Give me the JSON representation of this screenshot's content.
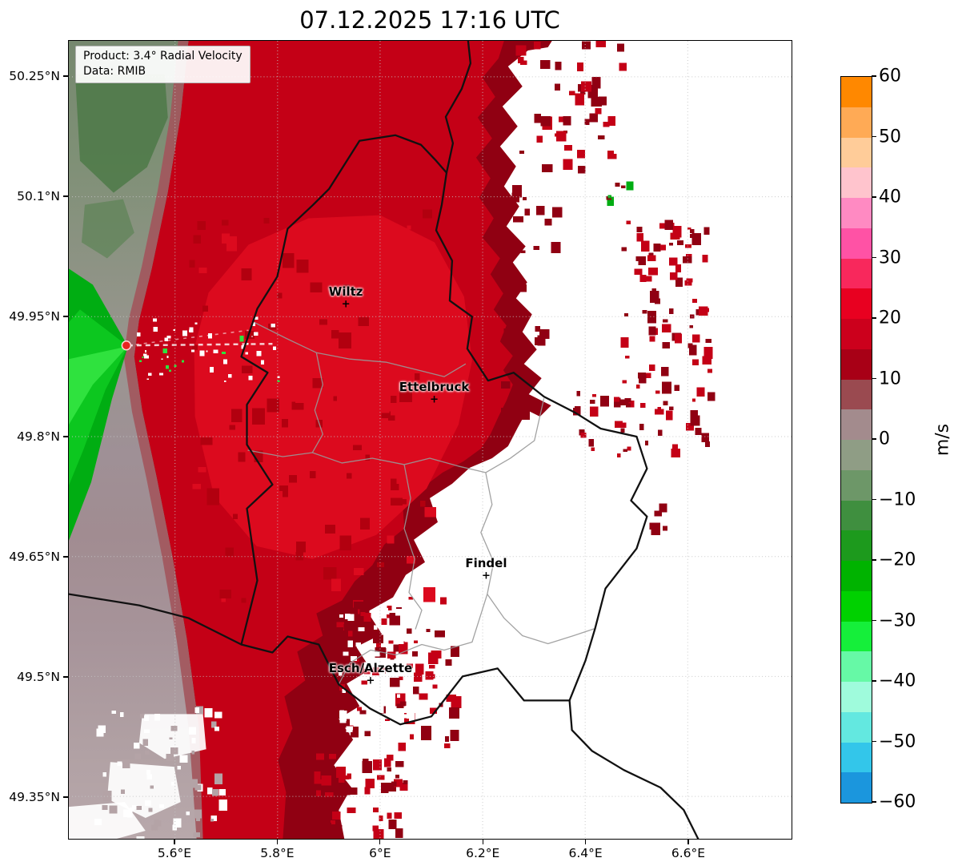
{
  "chart_data": {
    "type": "heatmap",
    "title": "07.12.2025 17:16 UTC",
    "product_line": "Product: 3.4° Radial Velocity",
    "data_line": "Data: RMIB",
    "units": "m/s",
    "x_axis": {
      "ticks": [
        {
          "label": "5.6°E",
          "lon": 5.6
        },
        {
          "label": "5.8°E",
          "lon": 5.8
        },
        {
          "label": "6°E",
          "lon": 6.0
        },
        {
          "label": "6.2°E",
          "lon": 6.2
        },
        {
          "label": "6.4°E",
          "lon": 6.4
        },
        {
          "label": "6.6°E",
          "lon": 6.6
        }
      ],
      "lon_range": [
        5.393,
        6.803
      ]
    },
    "y_axis": {
      "ticks": [
        {
          "label": "50.25°N",
          "lat": 50.25
        },
        {
          "label": "50.1°N",
          "lat": 50.1
        },
        {
          "label": "49.95°N",
          "lat": 49.95
        },
        {
          "label": "49.8°N",
          "lat": 49.8
        },
        {
          "label": "49.65°N",
          "lat": 49.65
        },
        {
          "label": "49.5°N",
          "lat": 49.5
        },
        {
          "label": "49.35°N",
          "lat": 49.35
        }
      ],
      "lat_range": [
        49.297,
        50.295
      ]
    },
    "colorbar": {
      "label": "m/s",
      "vmin": -60,
      "vmax": 60,
      "tick_labels": [
        {
          "label": "60",
          "value": 60
        },
        {
          "label": "50",
          "value": 50
        },
        {
          "label": "40",
          "value": 40
        },
        {
          "label": "30",
          "value": 30
        },
        {
          "label": "20",
          "value": 20
        },
        {
          "label": "10",
          "value": 10
        },
        {
          "label": "0",
          "value": 0
        },
        {
          "label": "−10",
          "value": -10
        },
        {
          "label": "−20",
          "value": -20
        },
        {
          "label": "−30",
          "value": -30
        },
        {
          "label": "−40",
          "value": -40
        },
        {
          "label": "−50",
          "value": -50
        },
        {
          "label": "−60",
          "value": -60
        }
      ],
      "segment_colors": [
        "#ff8800",
        "#ffaa55",
        "#ffcc99",
        "#ffc4cd",
        "#ff8ac2",
        "#ff52a5",
        "#f8285c",
        "#e80020",
        "#cc001c",
        "#a80016",
        "#9a4a50",
        "#a38b8d",
        "#8f9d85",
        "#6d9768",
        "#3f8f3f",
        "#1d9a1d",
        "#00b300",
        "#00d100",
        "#15ef3a",
        "#66f9a6",
        "#9ffbdc",
        "#63e8e0",
        "#33c6ea",
        "#1b96dd"
      ]
    },
    "radar_site": {
      "lon": 5.505,
      "lat": 49.914
    },
    "cities": [
      {
        "name": "Wiltz",
        "lon": 5.932,
        "lat": 49.966
      },
      {
        "name": "Ettelbruck",
        "lon": 6.104,
        "lat": 49.847
      },
      {
        "name": "Findel",
        "lon": 6.205,
        "lat": 49.627
      },
      {
        "name": "Esch/Alzette",
        "lon": 5.98,
        "lat": 49.496
      }
    ],
    "field_summary": {
      "outbound": "Broad outbound (positive, ~10–25 m/s) red radial-velocity field covering the west and north of the domain",
      "inbound": "Inbound (negative, ~−10 to −30 m/s) green sector immediately west of the radar site",
      "transition": "Gray/mauve near-zero velocity bands along the far western edge",
      "no_echo": "White no-echo region in the southeast with scattered red echo pixels"
    }
  },
  "palette": {
    "red_bright": "#dc0a1e",
    "red": "#c40016",
    "red_dark": "#900012",
    "red_deep": "#7a0a10",
    "red_mottle": "#b2000f",
    "brick": "#a2555c",
    "mauve": "#a28b90",
    "mauve_light": "#b4a3a6",
    "gray_green": "#7c8d74",
    "green_patch": "#4e7a49",
    "green": "#00ad12",
    "green_mid": "#0cc71f",
    "green_bright": "#2fe23e",
    "white": "#ffffff",
    "border_black": "#111111",
    "border_gray": "#999999",
    "grid": "#c4c4c4"
  },
  "speckle_clusters": [
    {
      "name": "red-field-mottle-dark",
      "lon": [
        5.626,
        6.094
      ],
      "lat": [
        49.595,
        50.095
      ],
      "count": 60,
      "size": 11,
      "colors": [
        "red_mottle"
      ]
    },
    {
      "name": "red-field-mottle-bright",
      "lon": [
        5.626,
        6.094
      ],
      "lat": [
        49.595,
        50.095
      ],
      "count": 45,
      "size": 10,
      "colors": [
        "red_bright"
      ]
    },
    {
      "name": "north-ragged-edge",
      "lon": [
        6.265,
        6.467
      ],
      "lat": [
        50.135,
        50.295
      ],
      "count": 45,
      "size": 9,
      "colors": [
        "red",
        "red_dark"
      ]
    },
    {
      "name": "east-rim-blotches",
      "lon": [
        6.234,
        6.346
      ],
      "lat": [
        49.825,
        50.115
      ],
      "count": 25,
      "size": 9,
      "colors": [
        "red_dark"
      ]
    },
    {
      "name": "east-scatter-main",
      "lon": [
        6.467,
        6.639
      ],
      "lat": [
        49.785,
        50.08
      ],
      "count": 100,
      "size": 8,
      "colors": [
        "red",
        "red_dark"
      ]
    },
    {
      "name": "northeast-small",
      "lon": [
        6.436,
        6.483
      ],
      "lat": [
        50.1,
        50.132
      ],
      "count": 6,
      "size": 8,
      "colors": [
        "red_dark",
        "green"
      ]
    },
    {
      "name": "sauer-valley-scatter",
      "lon": [
        6.374,
        6.483
      ],
      "lat": [
        49.775,
        49.865
      ],
      "count": 22,
      "size": 8,
      "colors": [
        "red",
        "red_dark"
      ]
    },
    {
      "name": "moselle-specks",
      "lon": [
        6.522,
        6.558
      ],
      "lat": [
        49.68,
        49.755
      ],
      "count": 5,
      "size": 8,
      "colors": [
        "red_dark"
      ]
    },
    {
      "name": "south-speckled-edge",
      "lon": [
        5.907,
        6.14
      ],
      "lat": [
        49.415,
        49.605
      ],
      "count": 85,
      "size": 9,
      "colors": [
        "red_dark",
        "red"
      ]
    },
    {
      "name": "south-white-holes",
      "lon": [
        5.915,
        6.062
      ],
      "lat": [
        49.435,
        49.595
      ],
      "count": 45,
      "size": 8,
      "colors": [
        "white"
      ]
    },
    {
      "name": "south-tail",
      "lon": [
        5.86,
        6.047
      ],
      "lat": [
        49.299,
        49.407
      ],
      "count": 50,
      "size": 9,
      "colors": [
        "red_dark",
        "red"
      ]
    },
    {
      "name": "radar-east-white",
      "lon": [
        5.517,
        5.806
      ],
      "lat": [
        49.87,
        49.95
      ],
      "count": 40,
      "size": 4,
      "colors": [
        "white"
      ]
    },
    {
      "name": "radar-east-green",
      "lon": [
        5.517,
        5.806
      ],
      "lat": [
        49.87,
        49.95
      ],
      "count": 10,
      "size": 4,
      "colors": [
        "green_bright"
      ]
    },
    {
      "name": "southwest-white-checker",
      "lon": [
        5.44,
        5.689
      ],
      "lat": [
        49.3,
        49.465
      ],
      "count": 70,
      "size": 7,
      "colors": [
        "white",
        "mauve_light"
      ]
    },
    {
      "name": "findel-west-holes",
      "lon": [
        6.14,
        6.265
      ],
      "lat": [
        49.605,
        49.735
      ],
      "count": 18,
      "size": 7,
      "colors": [
        "white"
      ]
    }
  ]
}
